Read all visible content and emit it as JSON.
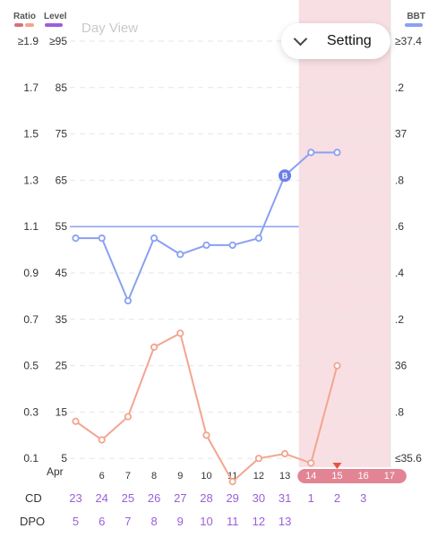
{
  "header": {
    "ratio_label": "Ratio",
    "level_label": "Level",
    "bbt_label": "BBT",
    "view_title": "Day View",
    "setting_label": "Setting"
  },
  "colors": {
    "ratio": "#d8707f",
    "ratio_light": "#f2a58f",
    "level": "#9b5fd9",
    "bbt": "#8aa0f2",
    "fertile_band": "#f8dfe4",
    "cycle_label": "#9b5fd9",
    "day_badge": "#e38494"
  },
  "axes": {
    "ratio_ticks": [
      "≥1.9",
      "1.7",
      "1.5",
      "1.3",
      "1.1",
      "0.9",
      "0.7",
      "0.5",
      "0.3",
      "0.1"
    ],
    "level_ticks": [
      "≥95",
      "85",
      "75",
      "65",
      "55",
      "45",
      "35",
      "25",
      "15",
      "5"
    ],
    "bbt_ticks": [
      "≥37.4",
      ".2",
      "37",
      ".8",
      ".6",
      ".4",
      ".2",
      "36",
      ".8",
      "≤35.6"
    ]
  },
  "rows": {
    "month_label": "Apr",
    "cd_label": "CD",
    "dpo_label": "DPO"
  },
  "chart_data": {
    "type": "line",
    "days": [
      "",
      "6",
      "7",
      "8",
      "9",
      "10",
      "11",
      "12",
      "13",
      "14",
      "15",
      "16",
      "17"
    ],
    "cd": [
      "23",
      "24",
      "25",
      "26",
      "27",
      "28",
      "29",
      "30",
      "31",
      "1",
      "2",
      "3",
      ""
    ],
    "dpo": [
      "5",
      "6",
      "7",
      "8",
      "9",
      "10",
      "11",
      "12",
      "13",
      "",
      "",
      "",
      ""
    ],
    "highlighted_days": [
      "14",
      "15",
      "16",
      "17"
    ],
    "fertile_window_start_index": 9,
    "today_marker_index": 10,
    "series": [
      {
        "name": "BBT",
        "axis": "bbt",
        "values": [
          36.55,
          36.55,
          36.28,
          36.55,
          36.48,
          36.52,
          36.52,
          36.55,
          36.82,
          36.92,
          36.92,
          null,
          null
        ],
        "reference_value": 36.6,
        "marker_index": 8,
        "marker_label": "B"
      },
      {
        "name": "Level",
        "axis": "level",
        "values": [
          13,
          9,
          14,
          29,
          32,
          10,
          0,
          5,
          6,
          4,
          25,
          null,
          null
        ]
      }
    ],
    "level_range": [
      5,
      95
    ],
    "bbt_range": [
      35.6,
      37.4
    ],
    "ratio_range": [
      0.1,
      1.9
    ]
  }
}
